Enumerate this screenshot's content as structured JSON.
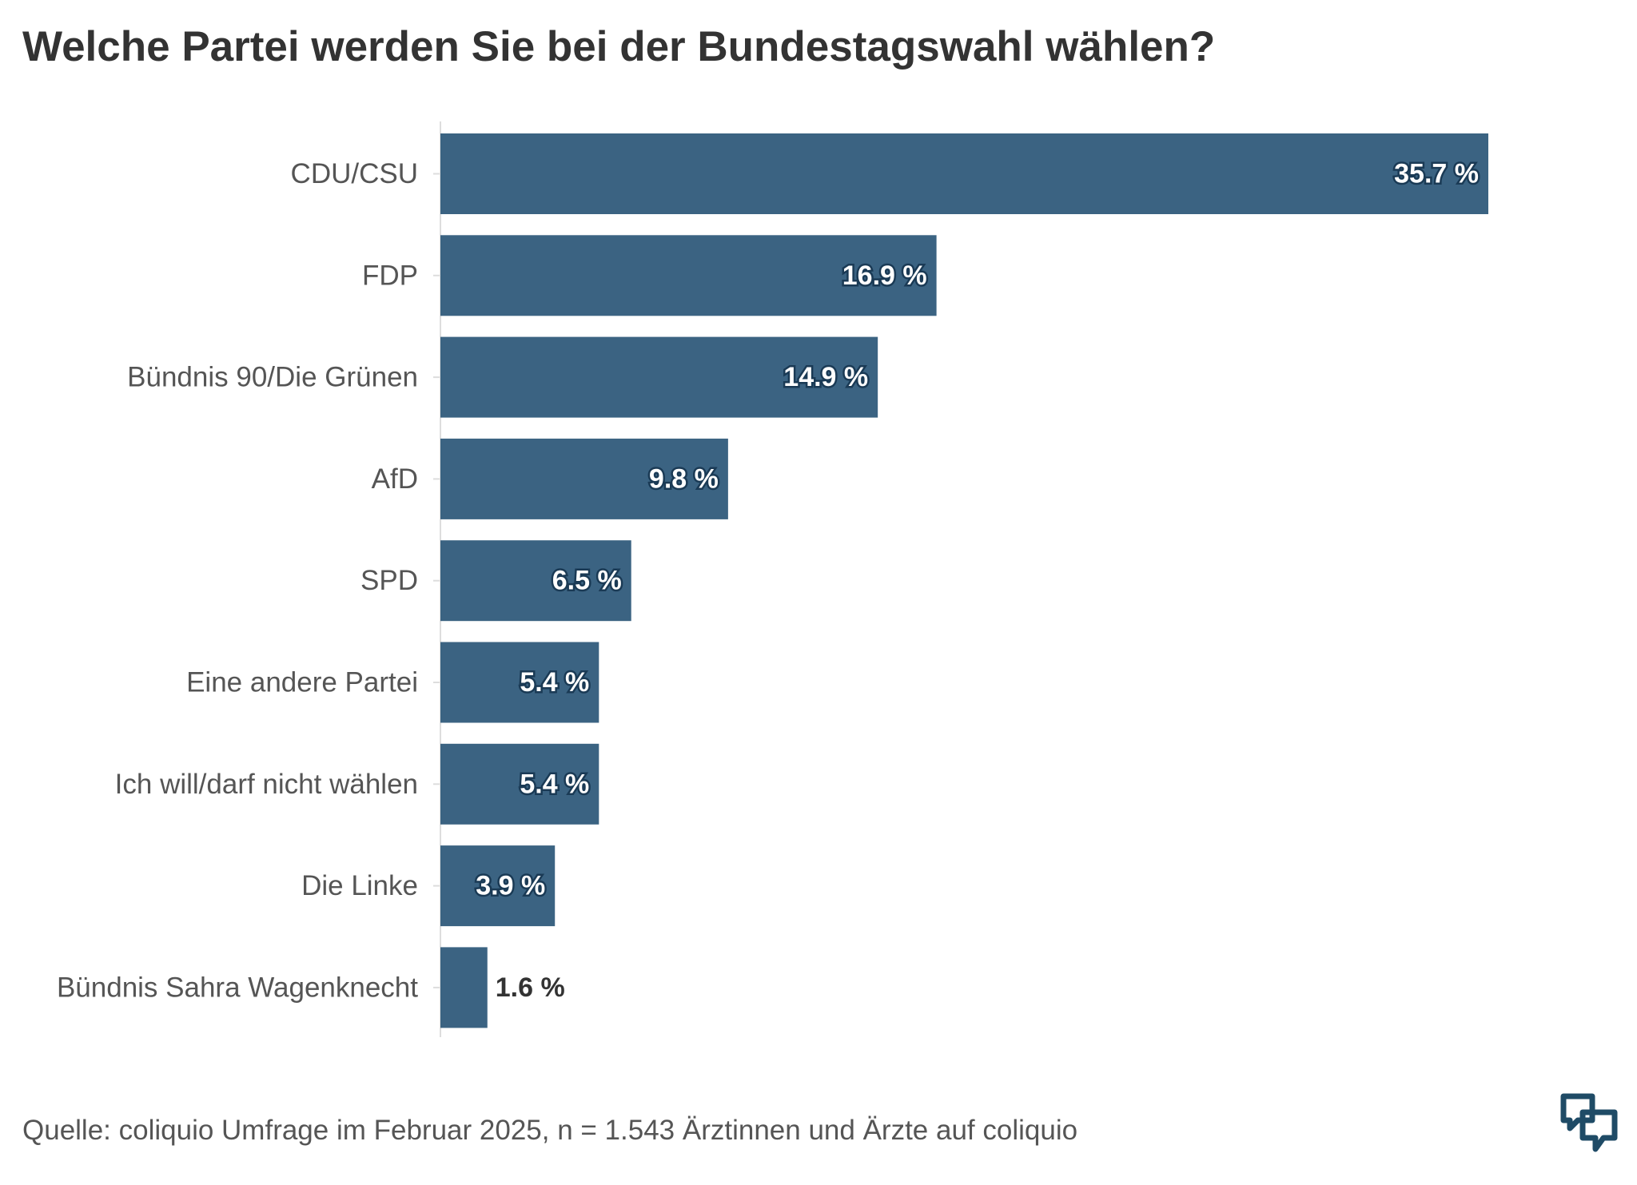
{
  "title": "Welche Partei werden Sie bei der Bundestagswahl wählen?",
  "source": "Quelle: coliquio Umfrage im Februar 2025, n = 1.543 Ärztinnen und Ärzte auf coliquio",
  "logo_icon": "coliquio-logo-icon",
  "colors": {
    "bar": "#3b6382",
    "logo": "#1f4b66"
  },
  "chart_data": {
    "type": "bar",
    "orientation": "horizontal",
    "title": "Welche Partei werden Sie bei der Bundestagswahl wählen?",
    "categories": [
      "CDU/CSU",
      "FDP",
      "Bündnis 90/Die Grünen",
      "AfD",
      "SPD",
      "Eine andere Partei",
      "Ich will/darf nicht wählen",
      "Die Linke",
      "Bündnis Sahra Wagenknecht"
    ],
    "values": [
      35.7,
      16.9,
      14.9,
      9.8,
      6.5,
      5.4,
      5.4,
      3.9,
      1.6
    ],
    "value_labels": [
      "35.7 %",
      "16.9 %",
      "14.9 %",
      "9.8 %",
      "6.5 %",
      "5.4 %",
      "5.4 %",
      "3.9 %",
      "1.6 %"
    ],
    "unit": "%",
    "xlim": [
      0,
      35.7
    ],
    "grid": false,
    "legend": "none"
  }
}
